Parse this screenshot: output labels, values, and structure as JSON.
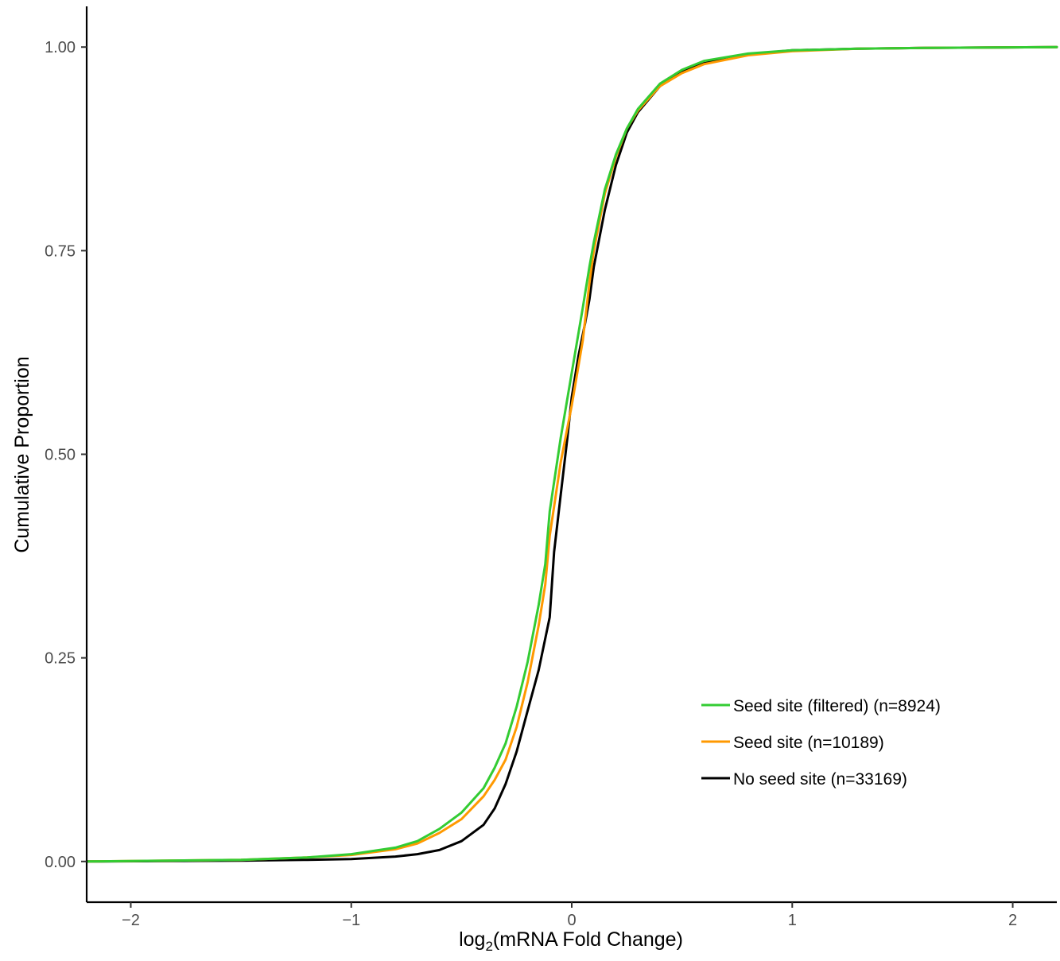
{
  "chart_data": {
    "type": "line",
    "title": "",
    "xlabel": {
      "prefix": "log",
      "subscript": "2",
      "suffix": "(mRNA Fold Change)"
    },
    "ylabel": "Cumulative Proportion",
    "xlim": [
      -2.2,
      2.2
    ],
    "ylim": [
      -0.05,
      1.05
    ],
    "x_ticks": [
      {
        "value": -2,
        "label": "−2"
      },
      {
        "value": -1,
        "label": "−1"
      },
      {
        "value": 0,
        "label": "0"
      },
      {
        "value": 1,
        "label": "1"
      },
      {
        "value": 2,
        "label": "2"
      }
    ],
    "y_ticks": [
      {
        "value": 0,
        "label": "0.00"
      },
      {
        "value": 0.25,
        "label": "0.25"
      },
      {
        "value": 0.5,
        "label": "0.50"
      },
      {
        "value": 0.75,
        "label": "0.75"
      },
      {
        "value": 1,
        "label": "1.00"
      }
    ],
    "grid": false,
    "legend_position": "bottom-right",
    "series": [
      {
        "name": "No seed site (n=33169)",
        "color": "#000000",
        "points": [
          [
            -2.2,
            0.0
          ],
          [
            -1.5,
            0.001
          ],
          [
            -1.2,
            0.002
          ],
          [
            -1.0,
            0.003
          ],
          [
            -0.8,
            0.006
          ],
          [
            -0.7,
            0.009
          ],
          [
            -0.6,
            0.014
          ],
          [
            -0.5,
            0.025
          ],
          [
            -0.4,
            0.045
          ],
          [
            -0.35,
            0.065
          ],
          [
            -0.3,
            0.095
          ],
          [
            -0.25,
            0.135
          ],
          [
            -0.2,
            0.185
          ],
          [
            -0.15,
            0.235
          ],
          [
            -0.1,
            0.3
          ],
          [
            -0.08,
            0.38
          ],
          [
            -0.05,
            0.45
          ],
          [
            -0.02,
            0.52
          ],
          [
            0.0,
            0.57
          ],
          [
            0.03,
            0.62
          ],
          [
            0.06,
            0.66
          ],
          [
            0.08,
            0.69
          ],
          [
            0.1,
            0.73
          ],
          [
            0.15,
            0.8
          ],
          [
            0.2,
            0.855
          ],
          [
            0.25,
            0.895
          ],
          [
            0.3,
            0.92
          ],
          [
            0.4,
            0.952
          ],
          [
            0.5,
            0.97
          ],
          [
            0.6,
            0.98
          ],
          [
            0.8,
            0.991
          ],
          [
            1.0,
            0.996
          ],
          [
            1.3,
            0.998
          ],
          [
            1.6,
            0.999
          ],
          [
            2.2,
            1.0
          ]
        ]
      },
      {
        "name": "Seed site (n=10189)",
        "color": "#ff9900",
        "points": [
          [
            -2.2,
            0.0
          ],
          [
            -1.5,
            0.002
          ],
          [
            -1.2,
            0.005
          ],
          [
            -1.0,
            0.008
          ],
          [
            -0.8,
            0.015
          ],
          [
            -0.7,
            0.022
          ],
          [
            -0.6,
            0.035
          ],
          [
            -0.5,
            0.052
          ],
          [
            -0.4,
            0.08
          ],
          [
            -0.35,
            0.1
          ],
          [
            -0.3,
            0.125
          ],
          [
            -0.25,
            0.165
          ],
          [
            -0.2,
            0.22
          ],
          [
            -0.15,
            0.29
          ],
          [
            -0.12,
            0.34
          ],
          [
            -0.1,
            0.4
          ],
          [
            -0.05,
            0.49
          ],
          [
            0.0,
            0.56
          ],
          [
            0.05,
            0.64
          ],
          [
            0.08,
            0.71
          ],
          [
            0.1,
            0.75
          ],
          [
            0.15,
            0.82
          ],
          [
            0.2,
            0.865
          ],
          [
            0.25,
            0.9
          ],
          [
            0.3,
            0.922
          ],
          [
            0.4,
            0.952
          ],
          [
            0.5,
            0.968
          ],
          [
            0.6,
            0.979
          ],
          [
            0.8,
            0.99
          ],
          [
            1.0,
            0.995
          ],
          [
            1.3,
            0.998
          ],
          [
            1.6,
            0.999
          ],
          [
            2.2,
            1.0
          ]
        ]
      },
      {
        "name": "Seed site (filtered) (n=8924)",
        "color": "#33cc33",
        "points": [
          [
            -2.2,
            0.0
          ],
          [
            -1.5,
            0.002
          ],
          [
            -1.2,
            0.005
          ],
          [
            -1.0,
            0.009
          ],
          [
            -0.8,
            0.017
          ],
          [
            -0.7,
            0.025
          ],
          [
            -0.6,
            0.04
          ],
          [
            -0.5,
            0.06
          ],
          [
            -0.4,
            0.09
          ],
          [
            -0.35,
            0.115
          ],
          [
            -0.3,
            0.145
          ],
          [
            -0.25,
            0.19
          ],
          [
            -0.2,
            0.245
          ],
          [
            -0.15,
            0.315
          ],
          [
            -0.12,
            0.365
          ],
          [
            -0.1,
            0.43
          ],
          [
            -0.05,
            0.52
          ],
          [
            0.0,
            0.6
          ],
          [
            0.05,
            0.68
          ],
          [
            0.08,
            0.73
          ],
          [
            0.1,
            0.76
          ],
          [
            0.15,
            0.825
          ],
          [
            0.2,
            0.868
          ],
          [
            0.25,
            0.9
          ],
          [
            0.3,
            0.924
          ],
          [
            0.4,
            0.955
          ],
          [
            0.5,
            0.972
          ],
          [
            0.6,
            0.983
          ],
          [
            0.8,
            0.992
          ],
          [
            1.0,
            0.996
          ],
          [
            1.3,
            0.998
          ],
          [
            1.6,
            0.999
          ],
          [
            2.2,
            1.0
          ]
        ]
      }
    ],
    "legend_order": [
      2,
      1,
      0
    ]
  }
}
